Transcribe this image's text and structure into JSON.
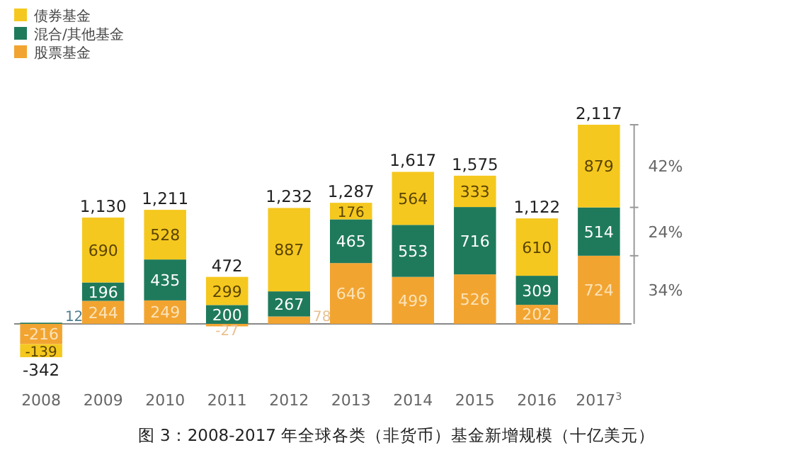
{
  "chart_data": {
    "type": "bar",
    "stacked": true,
    "title": "图 3：2008-2017 年全球各类（非货币）基金新增规模（十亿美元）",
    "categories": [
      "2008",
      "2009",
      "2010",
      "2011",
      "2012",
      "2013",
      "2014",
      "2015",
      "2016",
      "2017$^{3}$"
    ],
    "series": [
      {
        "name": "股票基金",
        "color": "#f2a431",
        "values": [
          -216,
          244,
          249,
          -27,
          78,
          646,
          499,
          526,
          202,
          724
        ]
      },
      {
        "name": "混合/其他基金",
        "color": "#1f7a5c",
        "values": [
          12,
          196,
          435,
          200,
          267,
          465,
          553,
          716,
          309,
          514
        ]
      },
      {
        "name": "债券基金",
        "color": "#f5c81f",
        "values": [
          -139,
          690,
          528,
          299,
          887,
          176,
          564,
          333,
          610,
          879
        ]
      }
    ],
    "data_labels": true,
    "totals": [
      "-342",
      "1,130",
      "1,211",
      "472",
      "1,232",
      "1,287",
      "1,617",
      "1,575",
      "1,122",
      "2,117"
    ],
    "annotations": [
      "42%",
      "24%",
      "34%"
    ],
    "legend": "top left"
  }
}
